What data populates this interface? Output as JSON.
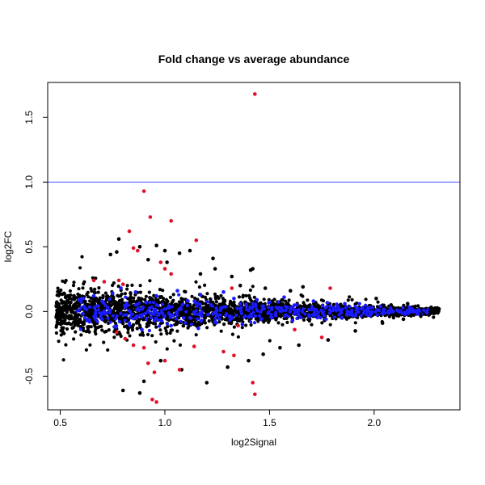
{
  "chart_data": {
    "type": "scatter",
    "title": "Fold change vs average abundance",
    "xlabel": "log2Signal",
    "ylabel": "log2FC",
    "xlim": [
      0.44,
      2.41
    ],
    "ylim": [
      -0.76,
      1.77
    ],
    "x_ticks": [
      0.5,
      1.0,
      1.5,
      2.0
    ],
    "x_tick_labels": [
      "0.5",
      "1.0",
      "1.5",
      "2.0"
    ],
    "y_ticks": [
      -0.5,
      0.0,
      0.5,
      1.0,
      1.5
    ],
    "y_tick_labels": [
      "-0.5",
      "0.0",
      "0.5",
      "1.0",
      "1.5"
    ],
    "reference_line": {
      "y": 1.0,
      "color": "#4a5aff"
    },
    "grid": false,
    "legend": "none",
    "colors": {
      "black": "#000000",
      "blue": "#1a1aff",
      "red": "#e0102a"
    },
    "series": [
      {
        "color": "#000000",
        "points": [
          [
            0.78,
            0.56
          ],
          [
            0.74,
            0.44
          ],
          [
            0.77,
            0.46
          ],
          [
            0.88,
            0.5
          ],
          [
            0.92,
            0.4
          ],
          [
            0.96,
            0.51
          ],
          [
            1.0,
            0.47
          ],
          [
            1.01,
            0.38
          ],
          [
            1.07,
            0.45
          ],
          [
            1.12,
            0.47
          ],
          [
            1.17,
            0.29
          ],
          [
            1.23,
            0.41
          ],
          [
            1.24,
            0.33
          ],
          [
            1.32,
            0.27
          ],
          [
            1.41,
            0.32
          ],
          [
            1.42,
            0.33
          ],
          [
            1.36,
            0.2
          ],
          [
            1.48,
            0.18
          ],
          [
            1.6,
            0.16
          ],
          [
            1.66,
            0.19
          ],
          [
            0.8,
            -0.61
          ],
          [
            0.88,
            -0.63
          ],
          [
            0.9,
            -0.54
          ],
          [
            0.98,
            -0.38
          ],
          [
            1.08,
            -0.45
          ],
          [
            1.2,
            -0.55
          ],
          [
            1.3,
            -0.43
          ],
          [
            1.4,
            -0.38
          ],
          [
            1.47,
            -0.33
          ],
          [
            1.55,
            -0.28
          ],
          [
            1.64,
            -0.26
          ],
          [
            1.78,
            -0.22
          ],
          [
            1.91,
            -0.15
          ],
          [
            2.04,
            -0.09
          ],
          [
            2.14,
            -0.06
          ],
          [
            2.22,
            -0.02
          ],
          [
            2.27,
            0.01
          ],
          [
            2.31,
            0.02
          ],
          [
            2.16,
            0.06
          ],
          [
            2.01,
            0.1
          ]
        ]
      },
      {
        "color": "#1a1aff",
        "points": [
          [
            0.61,
            0.1
          ],
          [
            0.66,
            0.12
          ],
          [
            0.7,
            0.08
          ],
          [
            0.75,
            0.14
          ],
          [
            0.79,
            0.18
          ],
          [
            0.82,
            0.05
          ],
          [
            0.86,
            0.15
          ],
          [
            0.91,
            0.07
          ],
          [
            0.96,
            0.12
          ],
          [
            1.02,
            0.03
          ],
          [
            1.06,
            0.16
          ],
          [
            1.11,
            0.08
          ],
          [
            1.17,
            0.13
          ],
          [
            1.22,
            0.05
          ],
          [
            1.28,
            0.15
          ],
          [
            1.33,
            0.1
          ],
          [
            1.39,
            0.04
          ],
          [
            1.44,
            0.09
          ],
          [
            1.5,
            0.07
          ],
          [
            1.57,
            0.11
          ],
          [
            1.63,
            0.05
          ],
          [
            1.71,
            0.08
          ],
          [
            1.79,
            0.04
          ],
          [
            1.86,
            0.06
          ],
          [
            1.94,
            0.02
          ],
          [
            2.03,
            0.04
          ],
          [
            2.11,
            0.01
          ],
          [
            2.18,
            0.0
          ],
          [
            2.21,
            -0.02
          ],
          [
            0.64,
            -0.08
          ],
          [
            0.7,
            -0.06
          ],
          [
            0.76,
            -0.12
          ],
          [
            0.83,
            -0.09
          ],
          [
            0.89,
            -0.14
          ],
          [
            0.95,
            -0.07
          ],
          [
            1.03,
            -0.11
          ],
          [
            1.09,
            -0.05
          ],
          [
            1.16,
            -0.13
          ],
          [
            1.24,
            -0.08
          ],
          [
            1.31,
            -0.04
          ],
          [
            1.37,
            -0.1
          ],
          [
            1.46,
            -0.06
          ],
          [
            1.53,
            -0.03
          ],
          [
            1.61,
            -0.07
          ],
          [
            1.69,
            -0.04
          ],
          [
            1.77,
            -0.06
          ],
          [
            1.87,
            -0.02
          ],
          [
            1.98,
            -0.03
          ],
          [
            2.07,
            -0.01
          ],
          [
            1.36,
            0.02
          ]
        ]
      },
      {
        "color": "#e0102a",
        "points": [
          [
            1.43,
            1.68
          ],
          [
            0.9,
            0.93
          ],
          [
            0.93,
            0.73
          ],
          [
            1.03,
            0.7
          ],
          [
            0.83,
            0.62
          ],
          [
            1.15,
            0.55
          ],
          [
            0.85,
            0.49
          ],
          [
            0.87,
            0.47
          ],
          [
            0.98,
            0.38
          ],
          [
            1.0,
            0.33
          ],
          [
            1.03,
            0.29
          ],
          [
            0.66,
            0.24
          ],
          [
            0.71,
            0.23
          ],
          [
            0.78,
            0.24
          ],
          [
            0.8,
            0.21
          ],
          [
            1.32,
            0.18
          ],
          [
            1.79,
            0.18
          ],
          [
            0.77,
            -0.16
          ],
          [
            0.81,
            -0.21
          ],
          [
            0.85,
            -0.26
          ],
          [
            0.9,
            -0.28
          ],
          [
            0.92,
            -0.4
          ],
          [
            0.95,
            -0.47
          ],
          [
            0.94,
            -0.68
          ],
          [
            0.96,
            -0.7
          ],
          [
            1.0,
            -0.38
          ],
          [
            1.07,
            -0.45
          ],
          [
            1.14,
            -0.27
          ],
          [
            1.28,
            -0.31
          ],
          [
            1.33,
            -0.34
          ],
          [
            1.42,
            -0.55
          ],
          [
            1.43,
            -0.64
          ],
          [
            1.35,
            -0.11
          ],
          [
            1.62,
            -0.14
          ],
          [
            1.75,
            -0.2
          ]
        ]
      }
    ]
  }
}
